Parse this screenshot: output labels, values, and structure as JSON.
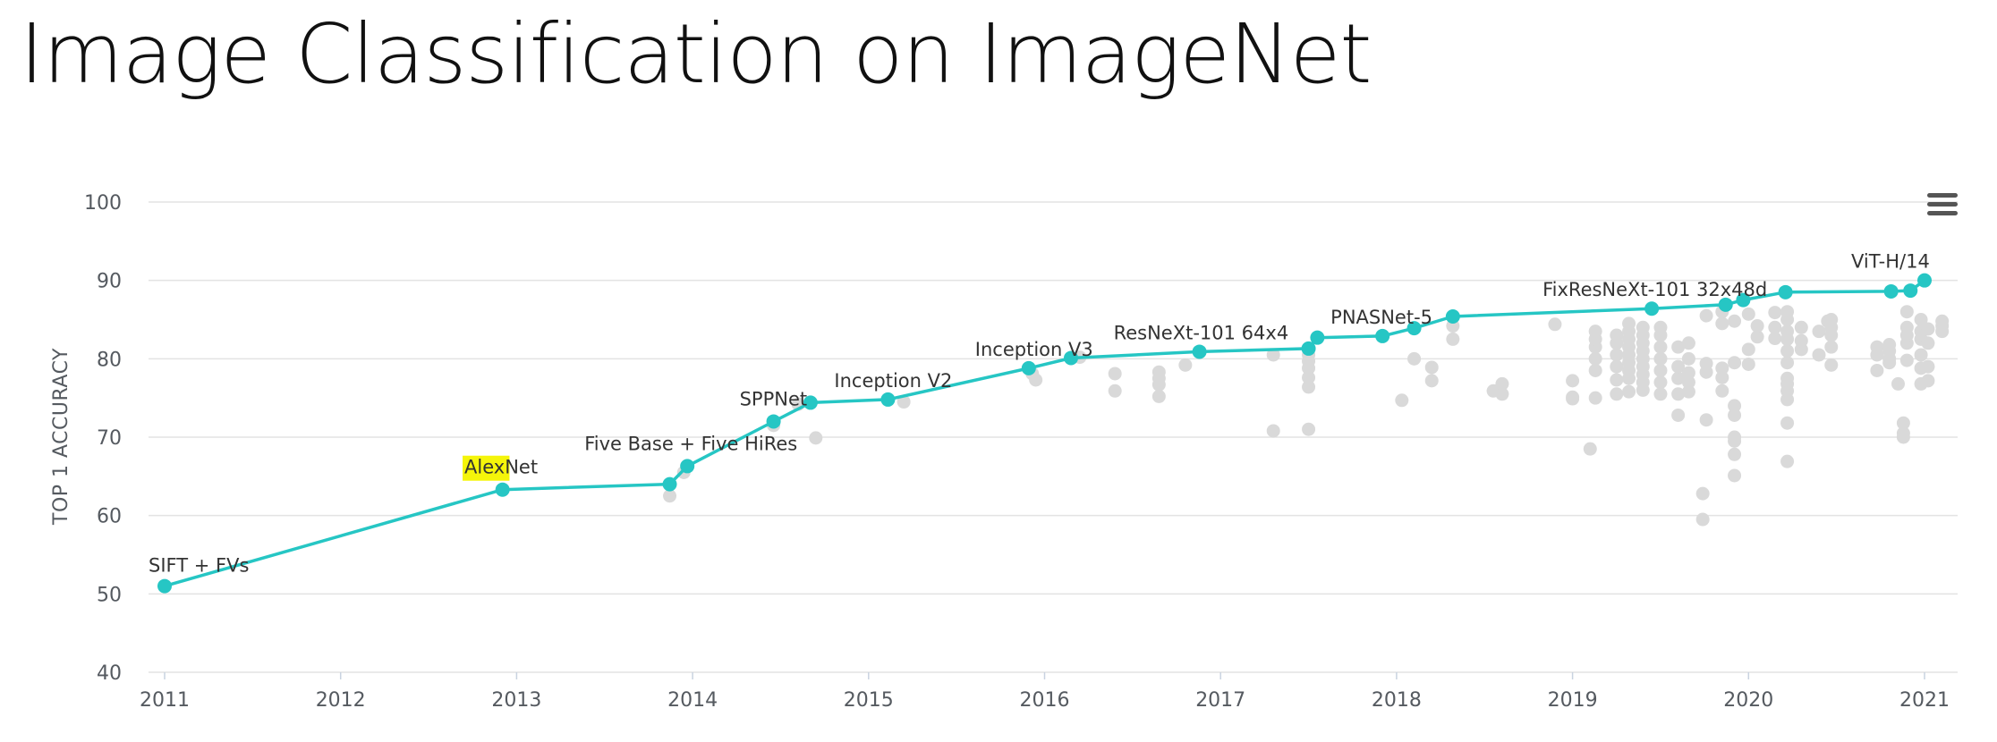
{
  "page": {
    "title": "Image Classification on ImageNet"
  },
  "menu": {
    "icon": "hamburger-menu-icon"
  },
  "colors": {
    "sota": "#26c6c4",
    "other": "#d9d9d9",
    "highlight": "#f5f50a",
    "grid": "#e3e3e3",
    "axis_text": "#555a60"
  },
  "chart_data": {
    "type": "scatter",
    "title": "",
    "xlabel": "",
    "ylabel": "TOP 1 ACCURACY",
    "xlim": [
      2011,
      2021.2
    ],
    "ylim": [
      40,
      100
    ],
    "xticks": [
      "2011",
      "2012",
      "2013",
      "2014",
      "2015",
      "2016",
      "2017",
      "2018",
      "2019",
      "2020",
      "2021"
    ],
    "yticks": [
      "40",
      "50",
      "60",
      "70",
      "80",
      "90",
      "100"
    ],
    "grid": true,
    "sota": [
      {
        "x": 2011.0,
        "y": 51.0,
        "label": "SIFT + FVs"
      },
      {
        "x": 2012.92,
        "y": 63.3,
        "label": "AlexNet",
        "highlight": "Alex"
      },
      {
        "x": 2013.87,
        "y": 64.0
      },
      {
        "x": 2013.97,
        "y": 66.3,
        "label": "Five Base + Five HiRes"
      },
      {
        "x": 2014.46,
        "y": 72.0,
        "label": "SPPNet"
      },
      {
        "x": 2014.67,
        "y": 74.4
      },
      {
        "x": 2015.11,
        "y": 74.8,
        "label": "Inception V2"
      },
      {
        "x": 2015.91,
        "y": 78.8,
        "label": "Inception V3"
      },
      {
        "x": 2016.15,
        "y": 80.1
      },
      {
        "x": 2016.88,
        "y": 80.9,
        "label": "ResNeXt-101 64x4"
      },
      {
        "x": 2017.5,
        "y": 81.3
      },
      {
        "x": 2017.55,
        "y": 82.7
      },
      {
        "x": 2017.92,
        "y": 82.9,
        "label": "PNASNet-5"
      },
      {
        "x": 2018.1,
        "y": 83.9
      },
      {
        "x": 2018.32,
        "y": 85.4
      },
      {
        "x": 2019.45,
        "y": 86.4,
        "label": "FixResNeXt-101 32x48d"
      },
      {
        "x": 2019.87,
        "y": 86.9
      },
      {
        "x": 2019.97,
        "y": 87.5
      },
      {
        "x": 2020.21,
        "y": 88.5
      },
      {
        "x": 2020.81,
        "y": 88.6
      },
      {
        "x": 2020.92,
        "y": 88.7
      },
      {
        "x": 2021.0,
        "y": 90.0,
        "label": "ViT-H/14"
      }
    ],
    "others": [
      [
        2013.87,
        62.5
      ],
      [
        2013.95,
        65.5
      ],
      [
        2014.46,
        71.5
      ],
      [
        2014.7,
        69.9
      ],
      [
        2014.6,
        74.2
      ],
      [
        2015.2,
        74.5
      ],
      [
        2015.95,
        77.3
      ],
      [
        2015.93,
        78.1
      ],
      [
        2016.2,
        80.2
      ],
      [
        2016.4,
        78.1
      ],
      [
        2016.4,
        75.9
      ],
      [
        2016.65,
        75.2
      ],
      [
        2016.65,
        76.7
      ],
      [
        2016.65,
        77.5
      ],
      [
        2016.65,
        78.3
      ],
      [
        2016.8,
        79.2
      ],
      [
        2017.3,
        70.8
      ],
      [
        2017.3,
        80.5
      ],
      [
        2017.5,
        71.0
      ],
      [
        2017.5,
        76.4
      ],
      [
        2017.5,
        77.6
      ],
      [
        2017.5,
        78.8
      ],
      [
        2017.5,
        79.7
      ],
      [
        2017.5,
        80.5
      ],
      [
        2018.03,
        74.7
      ],
      [
        2018.1,
        80.0
      ],
      [
        2018.2,
        77.2
      ],
      [
        2018.2,
        78.9
      ],
      [
        2018.32,
        82.5
      ],
      [
        2018.32,
        84.2
      ],
      [
        2018.55,
        75.9
      ],
      [
        2018.6,
        75.5
      ],
      [
        2018.6,
        76.8
      ],
      [
        2018.9,
        84.4
      ],
      [
        2019.0,
        74.9
      ],
      [
        2019.0,
        75.1
      ],
      [
        2019.0,
        77.2
      ],
      [
        2019.1,
        68.5
      ],
      [
        2019.13,
        75.0
      ],
      [
        2019.13,
        78.5
      ],
      [
        2019.13,
        80.0
      ],
      [
        2019.13,
        81.5
      ],
      [
        2019.13,
        82.5
      ],
      [
        2019.13,
        83.5
      ],
      [
        2019.25,
        75.5
      ],
      [
        2019.25,
        77.3
      ],
      [
        2019.25,
        79.0
      ],
      [
        2019.25,
        80.5
      ],
      [
        2019.25,
        82.0
      ],
      [
        2019.25,
        83.0
      ],
      [
        2019.32,
        75.8
      ],
      [
        2019.32,
        77.5
      ],
      [
        2019.32,
        78.5
      ],
      [
        2019.32,
        79.5
      ],
      [
        2019.32,
        80.5
      ],
      [
        2019.32,
        81.5
      ],
      [
        2019.32,
        82.5
      ],
      [
        2019.32,
        83.5
      ],
      [
        2019.32,
        84.5
      ],
      [
        2019.4,
        76.0
      ],
      [
        2019.4,
        77.0
      ],
      [
        2019.4,
        78.0
      ],
      [
        2019.4,
        79.0
      ],
      [
        2019.4,
        80.0
      ],
      [
        2019.4,
        81.0
      ],
      [
        2019.4,
        82.0
      ],
      [
        2019.4,
        83.0
      ],
      [
        2019.4,
        84.0
      ],
      [
        2019.5,
        75.5
      ],
      [
        2019.5,
        77.0
      ],
      [
        2019.5,
        78.5
      ],
      [
        2019.5,
        80.0
      ],
      [
        2019.5,
        81.5
      ],
      [
        2019.5,
        83.0
      ],
      [
        2019.5,
        84.0
      ],
      [
        2019.6,
        72.8
      ],
      [
        2019.6,
        75.5
      ],
      [
        2019.6,
        77.5
      ],
      [
        2019.6,
        79.0
      ],
      [
        2019.6,
        81.5
      ],
      [
        2019.66,
        75.8
      ],
      [
        2019.66,
        77.0
      ],
      [
        2019.66,
        78.2
      ],
      [
        2019.66,
        80.0
      ],
      [
        2019.66,
        82.0
      ],
      [
        2019.74,
        59.5
      ],
      [
        2019.74,
        62.8
      ],
      [
        2019.76,
        72.2
      ],
      [
        2019.76,
        78.3
      ],
      [
        2019.76,
        79.4
      ],
      [
        2019.76,
        85.5
      ],
      [
        2019.85,
        75.9
      ],
      [
        2019.85,
        77.6
      ],
      [
        2019.85,
        78.8
      ],
      [
        2019.85,
        84.5
      ],
      [
        2019.85,
        86.0
      ],
      [
        2019.92,
        65.1
      ],
      [
        2019.92,
        67.8
      ],
      [
        2019.92,
        69.5
      ],
      [
        2019.92,
        70.0
      ],
      [
        2019.92,
        72.8
      ],
      [
        2019.92,
        74.0
      ],
      [
        2019.92,
        79.5
      ],
      [
        2019.92,
        84.8
      ],
      [
        2020.0,
        79.3
      ],
      [
        2020.0,
        81.2
      ],
      [
        2020.0,
        85.7
      ],
      [
        2020.05,
        82.8
      ],
      [
        2020.05,
        84.2
      ],
      [
        2020.15,
        82.6
      ],
      [
        2020.15,
        84.0
      ],
      [
        2020.15,
        85.9
      ],
      [
        2020.22,
        66.9
      ],
      [
        2020.22,
        71.8
      ],
      [
        2020.22,
        74.8
      ],
      [
        2020.22,
        75.9
      ],
      [
        2020.22,
        76.8
      ],
      [
        2020.22,
        77.5
      ],
      [
        2020.22,
        79.5
      ],
      [
        2020.22,
        81.0
      ],
      [
        2020.22,
        82.5
      ],
      [
        2020.22,
        83.5
      ],
      [
        2020.22,
        85.0
      ],
      [
        2020.22,
        86.0
      ],
      [
        2020.3,
        81.2
      ],
      [
        2020.3,
        82.3
      ],
      [
        2020.3,
        84.0
      ],
      [
        2020.4,
        80.5
      ],
      [
        2020.4,
        83.5
      ],
      [
        2020.45,
        84.8
      ],
      [
        2020.47,
        79.2
      ],
      [
        2020.47,
        81.5
      ],
      [
        2020.47,
        83.0
      ],
      [
        2020.47,
        84.0
      ],
      [
        2020.47,
        85.0
      ],
      [
        2020.73,
        78.5
      ],
      [
        2020.73,
        80.5
      ],
      [
        2020.73,
        81.5
      ],
      [
        2020.8,
        79.5
      ],
      [
        2020.8,
        80.0
      ],
      [
        2020.8,
        81.0
      ],
      [
        2020.8,
        81.8
      ],
      [
        2020.85,
        76.8
      ],
      [
        2020.88,
        71.8
      ],
      [
        2020.88,
        70.5
      ],
      [
        2020.88,
        70.0
      ],
      [
        2020.9,
        79.8
      ],
      [
        2020.9,
        82.0
      ],
      [
        2020.9,
        83.0
      ],
      [
        2020.9,
        84.0
      ],
      [
        2020.9,
        86.0
      ],
      [
        2020.98,
        76.8
      ],
      [
        2020.98,
        78.8
      ],
      [
        2020.98,
        80.5
      ],
      [
        2020.98,
        82.5
      ],
      [
        2020.98,
        83.5
      ],
      [
        2020.98,
        85.0
      ],
      [
        2021.02,
        77.2
      ],
      [
        2021.02,
        79.0
      ],
      [
        2021.02,
        82.0
      ],
      [
        2021.02,
        83.8
      ],
      [
        2021.1,
        83.5
      ],
      [
        2021.1,
        84.2
      ],
      [
        2021.1,
        84.8
      ]
    ]
  }
}
